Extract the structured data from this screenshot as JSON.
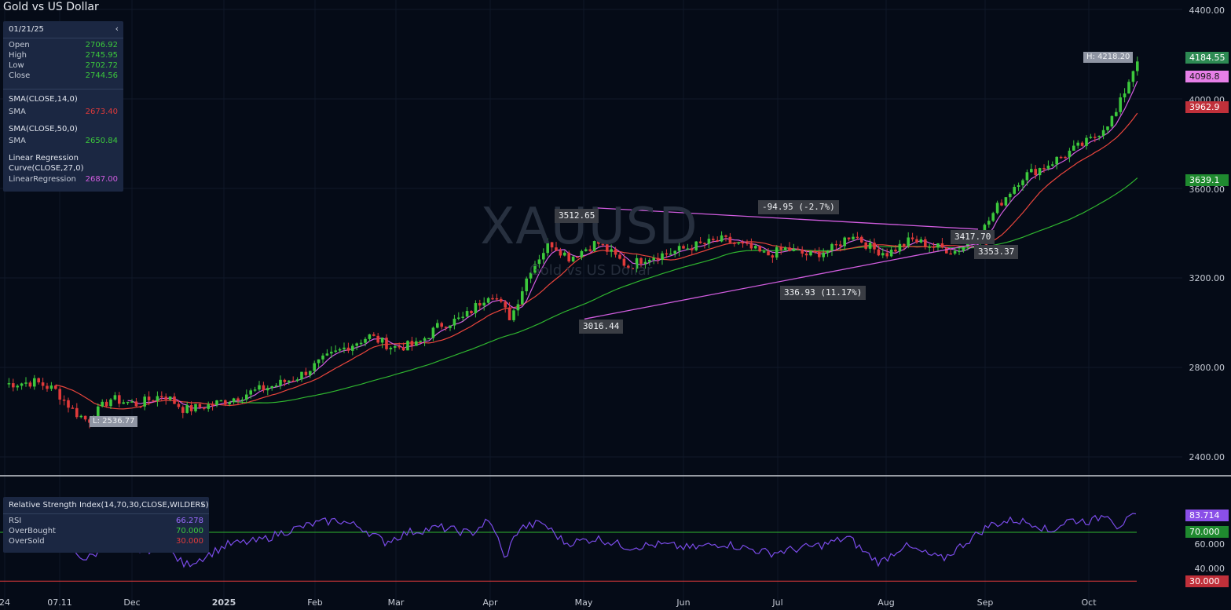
{
  "title": "Gold vs US Dollar",
  "watermark": "XAUUSD",
  "watermark_sub": "Gold vs US Dollar",
  "ohlc": {
    "date": "01/21/25",
    "rows": [
      {
        "label": "Open",
        "value": "2706.92"
      },
      {
        "label": "High",
        "value": "2745.95"
      },
      {
        "label": "Low",
        "value": "2702.72"
      },
      {
        "label": "Close",
        "value": "2744.56"
      }
    ],
    "sma14": {
      "name": "SMA(CLOSE,14,0)",
      "label": "SMA",
      "value": "2673.40"
    },
    "sma50": {
      "name": "SMA(CLOSE,50,0)",
      "label": "SMA",
      "value": "2650.84"
    },
    "linreg": {
      "name1": "Linear Regression",
      "name2": "Curve(CLOSE,27,0)",
      "label": "LinearRegression",
      "value": "2687.00"
    }
  },
  "rsi_panel": {
    "name": "Relative Strength Index(14,70,30,CLOSE,WILDERS)",
    "rows": [
      {
        "label": "RSI",
        "value": "66.278",
        "color": "#9b6bff"
      },
      {
        "label": "OverBought",
        "value": "70.000",
        "color": "#3cc83c"
      },
      {
        "label": "OverSold",
        "value": "30.000",
        "color": "#e03a3a"
      }
    ]
  },
  "colors": {
    "up": "#3cc83c",
    "down": "#e03a3a",
    "sma14": "#e8453c",
    "sma50": "#2fb52f",
    "linreg": "#d25de0",
    "rsi": "#7a4be8"
  },
  "chart_data": {
    "type": "candlestick",
    "title": "Gold vs US Dollar",
    "symbol": "XAUUSD",
    "y_ticks": [
      "4400.00",
      "4000.00",
      "3600.00",
      "3200.00",
      "2800.00",
      "2400.00"
    ],
    "ylim": [
      2360,
      4440
    ],
    "x_ticks": [
      "24",
      "07.11",
      "Dec",
      "2025",
      "Feb",
      "Mar",
      "Apr",
      "May",
      "Jun",
      "Jul",
      "Aug",
      "Sep",
      "Oct"
    ],
    "monthly_approx_close": [
      {
        "month": "Nov 2024",
        "close": 2650
      },
      {
        "month": "Dec 2024",
        "close": 2625
      },
      {
        "month": "Jan 2025",
        "close": 2800
      },
      {
        "month": "Feb 2025",
        "close": 2858
      },
      {
        "month": "Mar 2025",
        "close": 3120
      },
      {
        "month": "Apr 2025",
        "close": 3290
      },
      {
        "month": "May 2025",
        "close": 3290
      },
      {
        "month": "Jun 2025",
        "close": 3305
      },
      {
        "month": "Jul 2025",
        "close": 3290
      },
      {
        "month": "Aug 2025",
        "close": 3440
      },
      {
        "month": "Sep 2025",
        "close": 3860
      },
      {
        "month": "Oct 2025",
        "close": 4184.55
      }
    ],
    "price_tags": [
      {
        "value": "4184.55",
        "color": "#2d8a53"
      },
      {
        "value": "4098.8",
        "color": "#e67fe7"
      },
      {
        "value": "3962.9",
        "color": "#c0303a"
      },
      {
        "value": "3639.1",
        "color": "#1f8a2f"
      }
    ],
    "high_label": "H: 4218.20",
    "low_label": "L: 2536.77",
    "annotations": [
      "3512.65",
      "-94.95 (-2.7%)",
      "3417.70",
      "3353.37",
      "336.93 (11.17%)",
      "3016.44"
    ],
    "rsi": {
      "y_ticks": [
        "60.000",
        "40.000"
      ],
      "tags": [
        {
          "value": "83.714",
          "color": "#8a4fe8"
        },
        {
          "value": "70.000",
          "color": "#1f8a2f"
        },
        {
          "value": "30.000",
          "color": "#c0303a"
        }
      ],
      "overbought": 70,
      "oversold": 30,
      "last": 83.714
    }
  }
}
